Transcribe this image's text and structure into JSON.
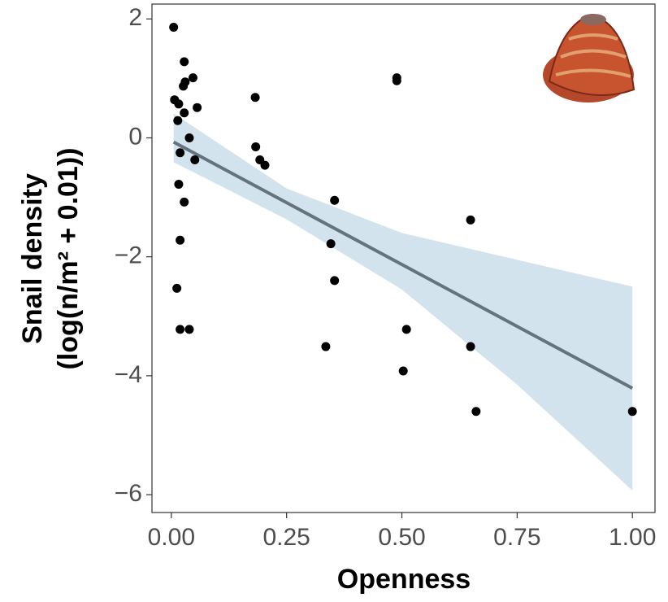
{
  "chart_data": {
    "type": "scatter",
    "x_label": "Openness",
    "y_label": [
      "Snail density",
      "(log(n/m² + 0.01))"
    ],
    "xlim": [
      -0.042,
      1.049
    ],
    "ylim": [
      -6.3,
      2.25
    ],
    "xticks": [
      {
        "value": 0,
        "label": "0.00"
      },
      {
        "value": 0.25,
        "label": "0.25"
      },
      {
        "value": 0.5,
        "label": "0.50"
      },
      {
        "value": 0.75,
        "label": "0.75"
      },
      {
        "value": 1,
        "label": "1.00"
      }
    ],
    "yticks": [
      {
        "value": -6,
        "label": "−6"
      },
      {
        "value": -4,
        "label": "−4"
      },
      {
        "value": -2,
        "label": "−2"
      },
      0,
      2
    ],
    "grid": false,
    "color": "#000000",
    "x": [
      0.005,
      0.007,
      0.016,
      0.028,
      0.047,
      0.026,
      0.03,
      0.028,
      0.056,
      0.014,
      0.039,
      0.019,
      0.051,
      0.016,
      0.028,
      0.019,
      0.012,
      0.019,
      0.039,
      0.182,
      0.183,
      0.192,
      0.203,
      0.354,
      0.346,
      0.354,
      0.335,
      0.489,
      0.489,
      0.51,
      0.503,
      0.649,
      0.649,
      0.661,
      1.0
    ],
    "y": [
      1.86,
      0.64,
      0.57,
      1.28,
      1.01,
      0.87,
      0.94,
      0.42,
      0.51,
      0.29,
      0.0,
      -0.25,
      -0.37,
      -0.78,
      -1.08,
      -1.72,
      -2.53,
      -3.22,
      -3.22,
      0.68,
      -0.15,
      -0.37,
      -0.46,
      -1.05,
      -1.78,
      -2.4,
      -3.51,
      1.01,
      0.96,
      -3.22,
      -3.92,
      -1.38,
      -3.51,
      -4.6,
      -4.6
    ],
    "fit": {
      "x": [
        0.005,
        1.0
      ],
      "y": [
        -0.07,
        -4.21
      ],
      "color": "#66737f"
    },
    "band": {
      "x": [
        0.005,
        0.25,
        0.5,
        0.75,
        1.0
      ],
      "upper": [
        0.41,
        -0.85,
        -1.6,
        -2.05,
        -2.5
      ],
      "lower": [
        -0.41,
        -1.37,
        -2.55,
        -4.15,
        -5.93
      ],
      "color": "#d3e3ee"
    }
  }
}
